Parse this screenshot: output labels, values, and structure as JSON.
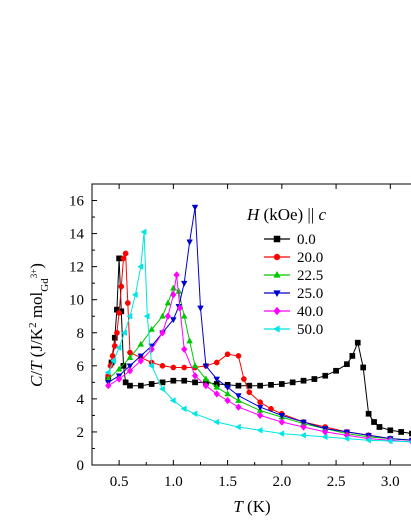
{
  "chart_data": {
    "type": "line",
    "xlabel": "T (K)",
    "ylabel": "C/T (J/K² mol_Gd³⁺)",
    "xlim": [
      0.25,
      3.2
    ],
    "ylim": [
      0,
      17
    ],
    "xticks": [
      0.5,
      1.0,
      1.5,
      2.0,
      2.5,
      3.0
    ],
    "xtick_labels": [
      "0.5",
      "1.0",
      "1.5",
      "2.0",
      "2.5",
      "3.0"
    ],
    "yticks": [
      0,
      2,
      4,
      6,
      8,
      10,
      12,
      14,
      16
    ],
    "ytick_labels": [
      "0",
      "2",
      "4",
      "6",
      "8",
      "10",
      "12",
      "14",
      "16"
    ],
    "grid": false,
    "legend_title": "H (kOe) || c",
    "legend_placement": "top-right",
    "series": [
      {
        "name": "0.0",
        "color": "#000000",
        "marker": "square",
        "points": [
          [
            0.4,
            5.3
          ],
          [
            0.43,
            6.2
          ],
          [
            0.46,
            7.7
          ],
          [
            0.48,
            9.4
          ],
          [
            0.5,
            12.5
          ],
          [
            0.52,
            9.3
          ],
          [
            0.54,
            6.0
          ],
          [
            0.56,
            5.0
          ],
          [
            0.6,
            4.8
          ],
          [
            0.7,
            4.8
          ],
          [
            0.8,
            4.9
          ],
          [
            0.9,
            5.0
          ],
          [
            1.0,
            5.1
          ],
          [
            1.1,
            5.1
          ],
          [
            1.2,
            5.0
          ],
          [
            1.3,
            5.0
          ],
          [
            1.4,
            4.9
          ],
          [
            1.5,
            4.85
          ],
          [
            1.6,
            4.8
          ],
          [
            1.7,
            4.8
          ],
          [
            1.8,
            4.8
          ],
          [
            1.9,
            4.85
          ],
          [
            2.0,
            4.9
          ],
          [
            2.1,
            5.0
          ],
          [
            2.2,
            5.1
          ],
          [
            2.3,
            5.2
          ],
          [
            2.4,
            5.4
          ],
          [
            2.5,
            5.7
          ],
          [
            2.6,
            6.1
          ],
          [
            2.65,
            6.6
          ],
          [
            2.7,
            7.4
          ],
          [
            2.75,
            5.9
          ],
          [
            2.8,
            3.1
          ],
          [
            2.85,
            2.6
          ],
          [
            2.9,
            2.3
          ],
          [
            3.0,
            2.1
          ],
          [
            3.1,
            2.0
          ],
          [
            3.2,
            1.9
          ]
        ]
      },
      {
        "name": "20.0",
        "color": "#ff0000",
        "marker": "circle",
        "points": [
          [
            0.4,
            5.4
          ],
          [
            0.42,
            6.0
          ],
          [
            0.44,
            6.6
          ],
          [
            0.46,
            7.2
          ],
          [
            0.48,
            8.0
          ],
          [
            0.5,
            9.2
          ],
          [
            0.52,
            10.8
          ],
          [
            0.54,
            12.5
          ],
          [
            0.56,
            12.8
          ],
          [
            0.58,
            9.8
          ],
          [
            0.6,
            6.8
          ],
          [
            0.7,
            6.5
          ],
          [
            0.8,
            6.2
          ],
          [
            0.9,
            6.0
          ],
          [
            1.0,
            5.9
          ],
          [
            1.1,
            5.9
          ],
          [
            1.2,
            5.9
          ],
          [
            1.3,
            6.0
          ],
          [
            1.4,
            6.2
          ],
          [
            1.5,
            6.7
          ],
          [
            1.6,
            6.6
          ],
          [
            1.65,
            5.2
          ],
          [
            1.7,
            4.4
          ],
          [
            1.8,
            3.8
          ],
          [
            1.9,
            3.4
          ],
          [
            2.0,
            3.1
          ],
          [
            2.2,
            2.6
          ],
          [
            2.4,
            2.3
          ],
          [
            2.6,
            2.0
          ],
          [
            2.8,
            1.8
          ],
          [
            3.0,
            1.6
          ],
          [
            3.2,
            1.5
          ]
        ]
      },
      {
        "name": "22.5",
        "color": "#00c800",
        "marker": "triangle-up",
        "points": [
          [
            0.4,
            5.2
          ],
          [
            0.5,
            5.8
          ],
          [
            0.6,
            6.5
          ],
          [
            0.7,
            7.3
          ],
          [
            0.8,
            8.2
          ],
          [
            0.9,
            9.0
          ],
          [
            0.95,
            9.8
          ],
          [
            1.0,
            10.7
          ],
          [
            1.05,
            10.5
          ],
          [
            1.1,
            9.0
          ],
          [
            1.15,
            7.5
          ],
          [
            1.2,
            6.0
          ],
          [
            1.3,
            5.2
          ],
          [
            1.4,
            4.7
          ],
          [
            1.5,
            4.3
          ],
          [
            1.6,
            3.9
          ],
          [
            1.8,
            3.3
          ],
          [
            2.0,
            2.9
          ],
          [
            2.2,
            2.5
          ],
          [
            2.4,
            2.2
          ],
          [
            2.6,
            1.9
          ],
          [
            2.8,
            1.7
          ],
          [
            3.0,
            1.6
          ],
          [
            3.2,
            1.5
          ]
        ]
      },
      {
        "name": "25.0",
        "color": "#0000cc",
        "marker": "triangle-down",
        "points": [
          [
            0.4,
            5.0
          ],
          [
            0.5,
            5.4
          ],
          [
            0.6,
            6.0
          ],
          [
            0.7,
            6.6
          ],
          [
            0.8,
            7.2
          ],
          [
            0.9,
            8.0
          ],
          [
            1.0,
            8.8
          ],
          [
            1.05,
            9.6
          ],
          [
            1.1,
            11.0
          ],
          [
            1.15,
            13.5
          ],
          [
            1.2,
            15.6
          ],
          [
            1.25,
            9.5
          ],
          [
            1.3,
            6.0
          ],
          [
            1.4,
            5.2
          ],
          [
            1.5,
            4.7
          ],
          [
            1.6,
            4.2
          ],
          [
            1.8,
            3.5
          ],
          [
            2.0,
            3.0
          ],
          [
            2.2,
            2.6
          ],
          [
            2.4,
            2.2
          ],
          [
            2.6,
            2.0
          ],
          [
            2.8,
            1.8
          ],
          [
            3.0,
            1.6
          ],
          [
            3.2,
            1.5
          ]
        ]
      },
      {
        "name": "40.0",
        "color": "#ff00ff",
        "marker": "diamond",
        "points": [
          [
            0.4,
            4.8
          ],
          [
            0.5,
            5.2
          ],
          [
            0.6,
            5.7
          ],
          [
            0.7,
            6.3
          ],
          [
            0.8,
            7.0
          ],
          [
            0.9,
            8.0
          ],
          [
            0.95,
            9.0
          ],
          [
            1.0,
            10.3
          ],
          [
            1.03,
            11.5
          ],
          [
            1.06,
            9.5
          ],
          [
            1.1,
            7.0
          ],
          [
            1.2,
            5.4
          ],
          [
            1.3,
            4.8
          ],
          [
            1.4,
            4.3
          ],
          [
            1.5,
            3.9
          ],
          [
            1.6,
            3.5
          ],
          [
            1.8,
            3.0
          ],
          [
            2.0,
            2.6
          ],
          [
            2.2,
            2.3
          ],
          [
            2.4,
            2.0
          ],
          [
            2.6,
            1.8
          ],
          [
            2.8,
            1.6
          ],
          [
            3.0,
            1.5
          ],
          [
            3.2,
            1.4
          ]
        ]
      },
      {
        "name": "50.0",
        "color": "#00e5e5",
        "marker": "triangle-left",
        "points": [
          [
            0.4,
            5.6
          ],
          [
            0.45,
            6.3
          ],
          [
            0.5,
            7.1
          ],
          [
            0.55,
            8.0
          ],
          [
            0.6,
            9.0
          ],
          [
            0.65,
            10.3
          ],
          [
            0.7,
            12.0
          ],
          [
            0.73,
            14.1
          ],
          [
            0.76,
            9.0
          ],
          [
            0.8,
            6.0
          ],
          [
            0.9,
            4.6
          ],
          [
            1.0,
            3.9
          ],
          [
            1.1,
            3.4
          ],
          [
            1.2,
            3.1
          ],
          [
            1.4,
            2.6
          ],
          [
            1.6,
            2.3
          ],
          [
            1.8,
            2.1
          ],
          [
            2.0,
            1.9
          ],
          [
            2.2,
            1.8
          ],
          [
            2.4,
            1.7
          ],
          [
            2.6,
            1.6
          ],
          [
            2.8,
            1.5
          ],
          [
            3.0,
            1.45
          ],
          [
            3.2,
            1.4
          ]
        ]
      }
    ]
  }
}
